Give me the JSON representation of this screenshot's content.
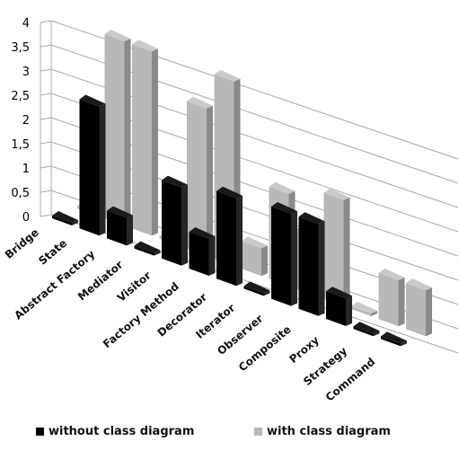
{
  "chart_data": {
    "type": "bar",
    "title": "",
    "xlabel": "",
    "ylabel": "",
    "ylim": [
      0,
      4
    ],
    "yticks": [
      "0",
      "0,5",
      "1",
      "1,5",
      "2",
      "2,5",
      "3",
      "3,5",
      "4"
    ],
    "grid": true,
    "legend_position": "bottom",
    "categories": [
      "Bridge",
      "State",
      "Abstract Factory",
      "Mediator",
      "Visitor",
      "Factory Method",
      "Decorator",
      "Iterator",
      "Observer",
      "Composite",
      "Proxy",
      "Strategy",
      "Command"
    ],
    "series": [
      {
        "name": "without class diagram",
        "color": "#000000",
        "values": [
          0,
          2.8,
          0.6,
          0,
          1.7,
          0.8,
          1.9,
          0,
          2.0,
          2.0,
          0.6,
          0,
          0
        ]
      },
      {
        "name": "with class diagram",
        "color": "#b8b8b8",
        "values": [
          0,
          4.0,
          4.0,
          0,
          3.2,
          4.0,
          0.6,
          2.0,
          1.3,
          2.3,
          0,
          1.0,
          1.0
        ]
      }
    ]
  }
}
